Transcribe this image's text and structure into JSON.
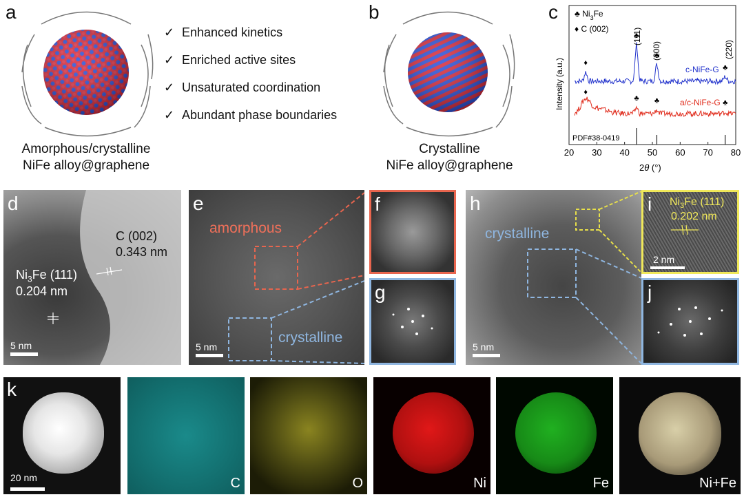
{
  "panel_a": {
    "label": "a",
    "caption_line1": "Amorphous/crystalline",
    "caption_line2": "NiFe alloy@graphene",
    "features": [
      "Enhanced kinetics",
      "Enriched active sites",
      "Unsaturated coordination",
      "Abundant phase boundaries"
    ],
    "check_mark": "✓"
  },
  "panel_b": {
    "label": "b",
    "caption_line1": "Crystalline",
    "caption_line2": "NiFe alloy@graphene"
  },
  "panel_c": {
    "label": "c",
    "legend_ni3fe_symbol": "♣",
    "legend_ni3fe_text": "Ni",
    "legend_ni3fe_sub": "3",
    "legend_ni3fe_tail": "Fe",
    "legend_c_symbol": "♦",
    "legend_c_text": "C (002)",
    "peak_111": "(111)",
    "peak_200": "(200)",
    "peak_220": "(220)",
    "series1_name": "c-NiFe-G",
    "series2_name": "a/c-NiFe-G",
    "reference": "PDF#38-0419",
    "ylabel": "Intensity (a.u.)",
    "xlabel_theta": "θ",
    "xlabel_pre": "2",
    "xlabel_unit": " (°)",
    "colors": {
      "series1": "#2233cc",
      "series2": "#e02a1a"
    }
  },
  "chart_data": {
    "type": "line",
    "xlabel": "2θ (°)",
    "ylabel": "Intensity (a.u.)",
    "xlim": [
      20,
      80
    ],
    "xticks": [
      "20",
      "30",
      "40",
      "50",
      "60",
      "70",
      "80"
    ],
    "series": [
      {
        "name": "c-NiFe-G",
        "color": "#2233cc",
        "peaks": [
          {
            "x": 26,
            "h": 0.25
          },
          {
            "x": 44.3,
            "h": 1.0
          },
          {
            "x": 51.6,
            "h": 0.45
          },
          {
            "x": 76.2,
            "h": 0.12
          }
        ]
      },
      {
        "name": "a/c-NiFe-G",
        "color": "#e02a1a",
        "peaks": [
          {
            "x": 26,
            "h": 0.6
          },
          {
            "x": 44.3,
            "h": 0.3
          },
          {
            "x": 51.6,
            "h": 0.18
          },
          {
            "x": 76.2,
            "h": 0.08
          }
        ]
      }
    ],
    "reference_lines": [
      44.3,
      51.6,
      76.2
    ]
  },
  "panel_d": {
    "label": "d",
    "c_label": "C (002)",
    "c_spacing": "0.343 nm",
    "ni_label_pre": "Ni",
    "ni_label_sub": "3",
    "ni_label_post": "Fe (111)",
    "ni_spacing": "0.204 nm",
    "scale": "5 nm"
  },
  "panel_e": {
    "label": "e",
    "amorphous": "amorphous",
    "crystalline": "crystalline",
    "scale": "5 nm"
  },
  "panel_f": {
    "label": "f"
  },
  "panel_g": {
    "label": "g"
  },
  "panel_h": {
    "label": "h",
    "crystalline": "crystalline",
    "scale": "5 nm"
  },
  "panel_i": {
    "label": "i",
    "ni_label_pre": "Ni",
    "ni_label_sub": "3",
    "ni_label_post": "Fe (111)",
    "spacing": "0.202 nm",
    "scale": "2 nm"
  },
  "panel_j": {
    "label": "j"
  },
  "panel_k": {
    "label": "k",
    "scale": "20 nm",
    "maps": [
      "C",
      "O",
      "Ni",
      "Fe",
      "Ni+Fe"
    ]
  }
}
